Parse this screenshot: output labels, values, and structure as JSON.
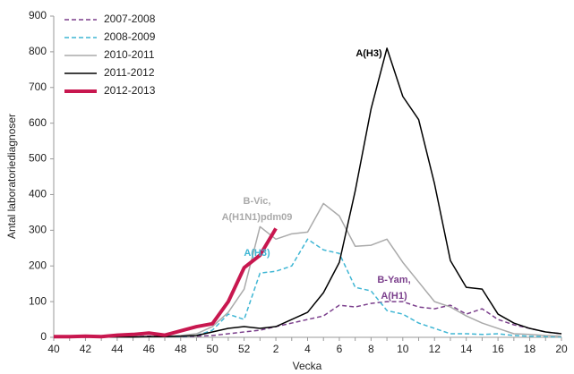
{
  "chart_data": {
    "type": "line",
    "y_label": "Antal laboratoriediagnoser",
    "x_label": "Vecka",
    "categories": [
      "40",
      null,
      "42",
      null,
      "44",
      null,
      "46",
      null,
      "48",
      null,
      "50",
      null,
      "52",
      null,
      "2",
      null,
      "4",
      null,
      "6",
      null,
      "8",
      null,
      "10",
      null,
      "12",
      null,
      "14",
      null,
      "16",
      null,
      "18",
      null,
      "20"
    ],
    "ylim": [
      0,
      900
    ],
    "yticks": [
      0,
      100,
      200,
      300,
      400,
      500,
      600,
      700,
      800,
      900
    ],
    "grid": false,
    "legend": "top-left",
    "series": [
      {
        "name": "2007-2008",
        "color": "#7b3f8c",
        "dash": "dashed",
        "width": 1.5,
        "values": [
          1,
          1,
          2,
          1,
          2,
          2,
          3,
          2,
          2,
          3,
          5,
          10,
          15,
          20,
          30,
          40,
          50,
          60,
          90,
          85,
          95,
          100,
          100,
          85,
          80,
          90,
          65,
          80,
          50,
          35,
          25,
          15,
          10
        ]
      },
      {
        "name": "2008-2009",
        "color": "#3fb6d4",
        "dash": "dashed",
        "width": 1.5,
        "values": [
          2,
          2,
          2,
          2,
          2,
          2,
          2,
          2,
          2,
          5,
          20,
          65,
          50,
          180,
          185,
          200,
          275,
          245,
          235,
          140,
          130,
          75,
          65,
          40,
          25,
          10,
          10,
          8,
          10,
          5,
          3,
          2,
          1
        ]
      },
      {
        "name": "2010-2011",
        "color": "#aaaaaa",
        "dash": "solid",
        "width": 1.5,
        "values": [
          0,
          0,
          1,
          1,
          1,
          2,
          2,
          3,
          5,
          10,
          30,
          70,
          135,
          310,
          275,
          290,
          295,
          375,
          340,
          255,
          258,
          275,
          210,
          155,
          100,
          85,
          60,
          40,
          25,
          10,
          8,
          5,
          3
        ]
      },
      {
        "name": "2011-2012",
        "color": "#000000",
        "dash": "solid",
        "width": 1.5,
        "values": [
          0,
          0,
          1,
          1,
          1,
          1,
          2,
          2,
          3,
          5,
          15,
          25,
          30,
          25,
          30,
          50,
          70,
          125,
          210,
          410,
          640,
          810,
          675,
          610,
          430,
          215,
          140,
          135,
          65,
          40,
          25,
          15,
          10
        ]
      },
      {
        "name": "2012-2013",
        "color": "#c8174f",
        "dash": "solid",
        "width": 4,
        "values": [
          2,
          2,
          3,
          2,
          6,
          8,
          12,
          6,
          18,
          30,
          38,
          100,
          195,
          230,
          305,
          null,
          null,
          null,
          null,
          null,
          null,
          null,
          null,
          null,
          null,
          null,
          null,
          null,
          null,
          null,
          null,
          null,
          null
        ]
      }
    ],
    "annotations": [
      {
        "lines": [
          "A(H3)"
        ],
        "color": "#000000"
      },
      {
        "lines": [
          "B-Vic,",
          "A(H1N1)pdm09"
        ],
        "color": "#aaaaaa"
      },
      {
        "lines": [
          "A(H3)"
        ],
        "color": "#3fb6d4"
      },
      {
        "lines": [
          "B-Yam,",
          "A(H1)"
        ],
        "color": "#7b3f8c"
      }
    ]
  }
}
